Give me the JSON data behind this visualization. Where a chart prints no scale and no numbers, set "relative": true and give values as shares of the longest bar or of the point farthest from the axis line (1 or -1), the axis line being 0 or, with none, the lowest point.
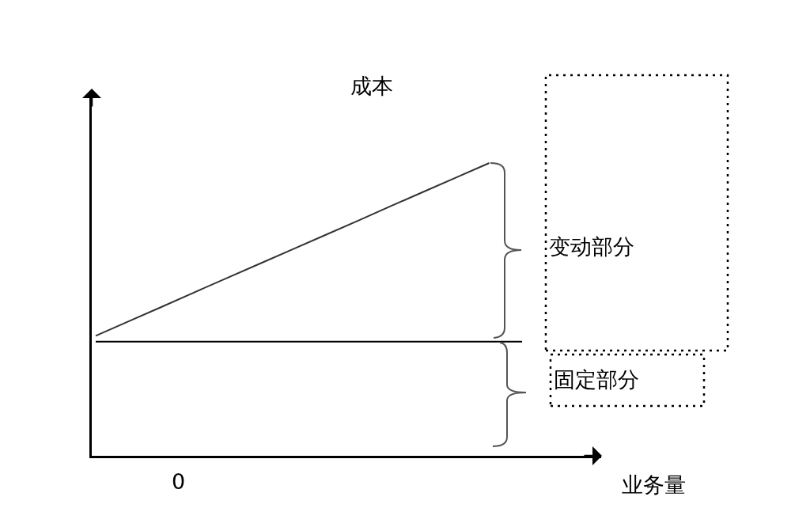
{
  "chart_data": {
    "type": "line",
    "relative": true,
    "categories": [
      null,
      null,
      null,
      null,
      null,
      null,
      null,
      null,
      null,
      null,
      null,
      null,
      null,
      null
    ],
    "series": [
      {
        "color": "#333333",
        "values": [
          0.41,
          0.459,
          0.508,
          0.558,
          0.607,
          0.656,
          0.705,
          0.754,
          0.803,
          0.853,
          0.902,
          0.951,
          1.0,
          null
        ]
      },
      {
        "color": "#000000",
        "values": [
          0.39,
          0.39,
          0.39,
          0.39,
          0.39,
          0.39,
          0.39,
          0.39,
          0.39,
          0.39,
          0.39,
          0.39,
          0.39,
          0.39
        ]
      }
    ],
    "xlabel": "业务量",
    "ylabel": "成本",
    "annotations": [
      "0",
      "变动部分",
      "固定部分"
    ],
    "grid": false
  }
}
